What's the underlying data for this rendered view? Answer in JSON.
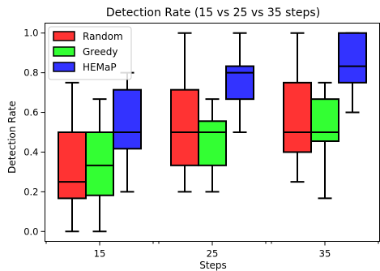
{
  "chart_data": {
    "type": "box",
    "title": "Detection Rate (15 vs 25 vs 35 steps)",
    "xlabel": "Steps",
    "ylabel": "Detection Rate",
    "categories": [
      "15",
      "25",
      "35"
    ],
    "ylim": [
      -0.05,
      1.05
    ],
    "yticks": [
      0.0,
      0.2,
      0.4,
      0.6,
      0.8,
      1.0
    ],
    "ytick_labels": [
      "0.0",
      "0.2",
      "0.4",
      "0.6",
      "0.8",
      "1.0"
    ],
    "grid": false,
    "legend_position": "top-left",
    "series": [
      {
        "name": "Random",
        "color": "#ff3333",
        "boxes": [
          {
            "min": 0.0,
            "q1": 0.167,
            "median": 0.25,
            "q3": 0.5,
            "max": 0.75
          },
          {
            "min": 0.2,
            "q1": 0.333,
            "median": 0.5,
            "q3": 0.714,
            "max": 1.0
          },
          {
            "min": 0.25,
            "q1": 0.4,
            "median": 0.5,
            "q3": 0.75,
            "max": 1.0
          }
        ]
      },
      {
        "name": "Greedy",
        "color": "#33ff33",
        "boxes": [
          {
            "min": 0.0,
            "q1": 0.182,
            "median": 0.333,
            "q3": 0.5,
            "max": 0.667
          },
          {
            "min": 0.2,
            "q1": 0.333,
            "median": 0.5,
            "q3": 0.556,
            "max": 0.667
          },
          {
            "min": 0.167,
            "q1": 0.455,
            "median": 0.5,
            "q3": 0.667,
            "max": 0.75
          }
        ]
      },
      {
        "name": "HEMaP",
        "color": "#3333ff",
        "boxes": [
          {
            "min": 0.2,
            "q1": 0.417,
            "median": 0.5,
            "q3": 0.714,
            "max": 0.8
          },
          {
            "min": 0.5,
            "q1": 0.667,
            "median": 0.8,
            "q3": 0.833,
            "max": 1.0
          },
          {
            "min": 0.6,
            "q1": 0.75,
            "median": 0.833,
            "q3": 1.0,
            "max": 1.0
          }
        ]
      }
    ]
  }
}
